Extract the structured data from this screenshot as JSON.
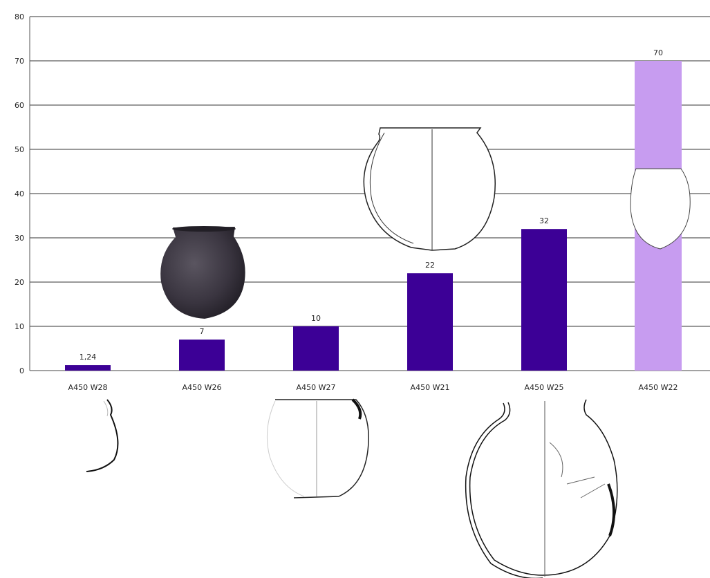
{
  "chart_data": {
    "type": "bar",
    "categories": [
      "A450 W28",
      "A450 W26",
      "A450 W27",
      "A450 W21",
      "A450 W25",
      "A450 W22"
    ],
    "values": [
      1.24,
      7,
      10,
      22,
      32,
      70
    ],
    "data_labels": [
      "1,24",
      "7",
      "10",
      "22",
      "32",
      "70"
    ],
    "yticks": [
      "0",
      "10",
      "20",
      "30",
      "40",
      "50",
      "60",
      "70",
      "80"
    ],
    "ylim": [
      0,
      80
    ],
    "grid": true,
    "colors": {
      "bar": "#3c0096",
      "highlight_bar": "#c79cf0",
      "grid": "#333333",
      "highlight_bar_index": 5
    },
    "title": "",
    "xlabel": "",
    "ylabel": ""
  },
  "illustrations": [
    "pottery-vessel-photo-dark",
    "pottery-vessel-drawing-w21",
    "pottery-vessel-drawing-w22",
    "pottery-profile-drawing-w28",
    "pottery-profile-drawing-w27",
    "pottery-vessel-drawing-w25"
  ]
}
